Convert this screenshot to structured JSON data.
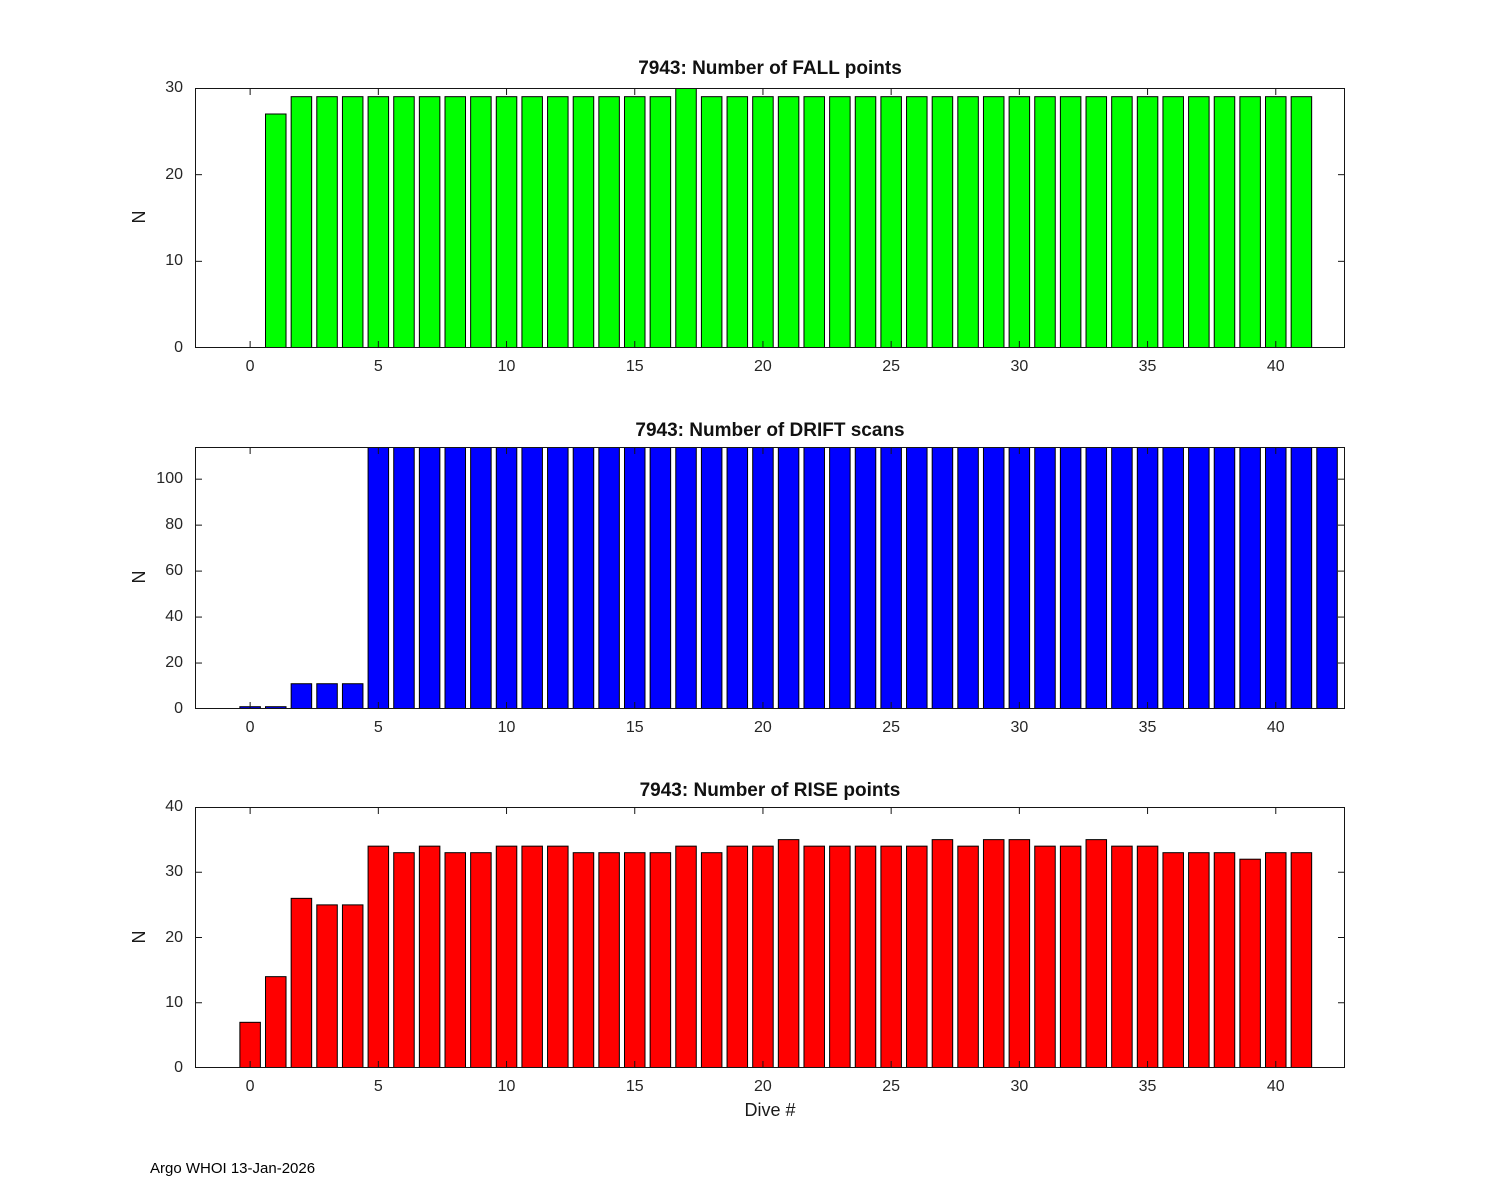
{
  "figure": {
    "footer": "Argo WHOI 13-Jan-2026"
  },
  "chart_data": [
    {
      "type": "bar",
      "title": "7943: Number of FALL points",
      "ylabel": "N",
      "xlabel": "",
      "bar_color": "#00ff00",
      "bar_edge_color": "#000000",
      "xlim": [
        -2.15,
        42.7
      ],
      "ylim": [
        0,
        30
      ],
      "xticks": [
        0,
        5,
        10,
        15,
        20,
        25,
        30,
        35,
        40
      ],
      "yticks": [
        0,
        10,
        20,
        30
      ],
      "x": [
        1,
        2,
        3,
        4,
        5,
        6,
        7,
        8,
        9,
        10,
        11,
        12,
        13,
        14,
        15,
        16,
        17,
        18,
        19,
        20,
        21,
        22,
        23,
        24,
        25,
        26,
        27,
        28,
        29,
        30,
        31,
        32,
        33,
        34,
        35,
        36,
        37,
        38,
        39,
        40,
        41
      ],
      "values": [
        27,
        29,
        29,
        29,
        29,
        29,
        29,
        29,
        29,
        29,
        29,
        29,
        29,
        29,
        29,
        29,
        30,
        29,
        29,
        29,
        29,
        29,
        29,
        29,
        29,
        29,
        29,
        29,
        29,
        29,
        29,
        29,
        29,
        29,
        29,
        29,
        29,
        29,
        29,
        29,
        29
      ]
    },
    {
      "type": "bar",
      "title": "7943: Number of DRIFT scans",
      "ylabel": "N",
      "xlabel": "",
      "bar_color": "#0000ff",
      "bar_edge_color": "#000000",
      "xlim": [
        -2.15,
        42.7
      ],
      "ylim": [
        0,
        114
      ],
      "xticks": [
        0,
        5,
        10,
        15,
        20,
        25,
        30,
        35,
        40
      ],
      "yticks": [
        0,
        20,
        40,
        60,
        80,
        100
      ],
      "x": [
        0,
        1,
        2,
        3,
        4,
        5,
        6,
        7,
        8,
        9,
        10,
        11,
        12,
        13,
        14,
        15,
        16,
        17,
        18,
        19,
        20,
        21,
        22,
        23,
        24,
        25,
        26,
        27,
        28,
        29,
        30,
        31,
        32,
        33,
        34,
        35,
        36,
        37,
        38,
        39,
        40,
        41,
        42
      ],
      "values": [
        1,
        1,
        11,
        11,
        11,
        114,
        114,
        114,
        114,
        114,
        114,
        114,
        114,
        114,
        114,
        114,
        114,
        114,
        114,
        114,
        114,
        114,
        114,
        114,
        114,
        114,
        114,
        114,
        114,
        114,
        114,
        114,
        114,
        114,
        114,
        114,
        114,
        114,
        114,
        114,
        114,
        114,
        114
      ]
    },
    {
      "type": "bar",
      "title": "7943: Number of RISE points",
      "ylabel": "N",
      "xlabel": "Dive #",
      "bar_color": "#ff0000",
      "bar_edge_color": "#000000",
      "xlim": [
        -2.15,
        42.7
      ],
      "ylim": [
        0,
        40
      ],
      "xticks": [
        0,
        5,
        10,
        15,
        20,
        25,
        30,
        35,
        40
      ],
      "yticks": [
        0,
        10,
        20,
        30,
        40
      ],
      "x": [
        0,
        1,
        2,
        3,
        4,
        5,
        6,
        7,
        8,
        9,
        10,
        11,
        12,
        13,
        14,
        15,
        16,
        17,
        18,
        19,
        20,
        21,
        22,
        23,
        24,
        25,
        26,
        27,
        28,
        29,
        30,
        31,
        32,
        33,
        34,
        35,
        36,
        37,
        38,
        39,
        40,
        41
      ],
      "values": [
        7,
        14,
        26,
        25,
        25,
        34,
        33,
        34,
        33,
        33,
        34,
        34,
        34,
        33,
        33,
        33,
        33,
        34,
        33,
        34,
        34,
        35,
        34,
        34,
        34,
        34,
        34,
        35,
        34,
        35,
        35,
        34,
        34,
        35,
        34,
        34,
        33,
        33,
        33,
        32,
        33,
        33
      ]
    }
  ]
}
